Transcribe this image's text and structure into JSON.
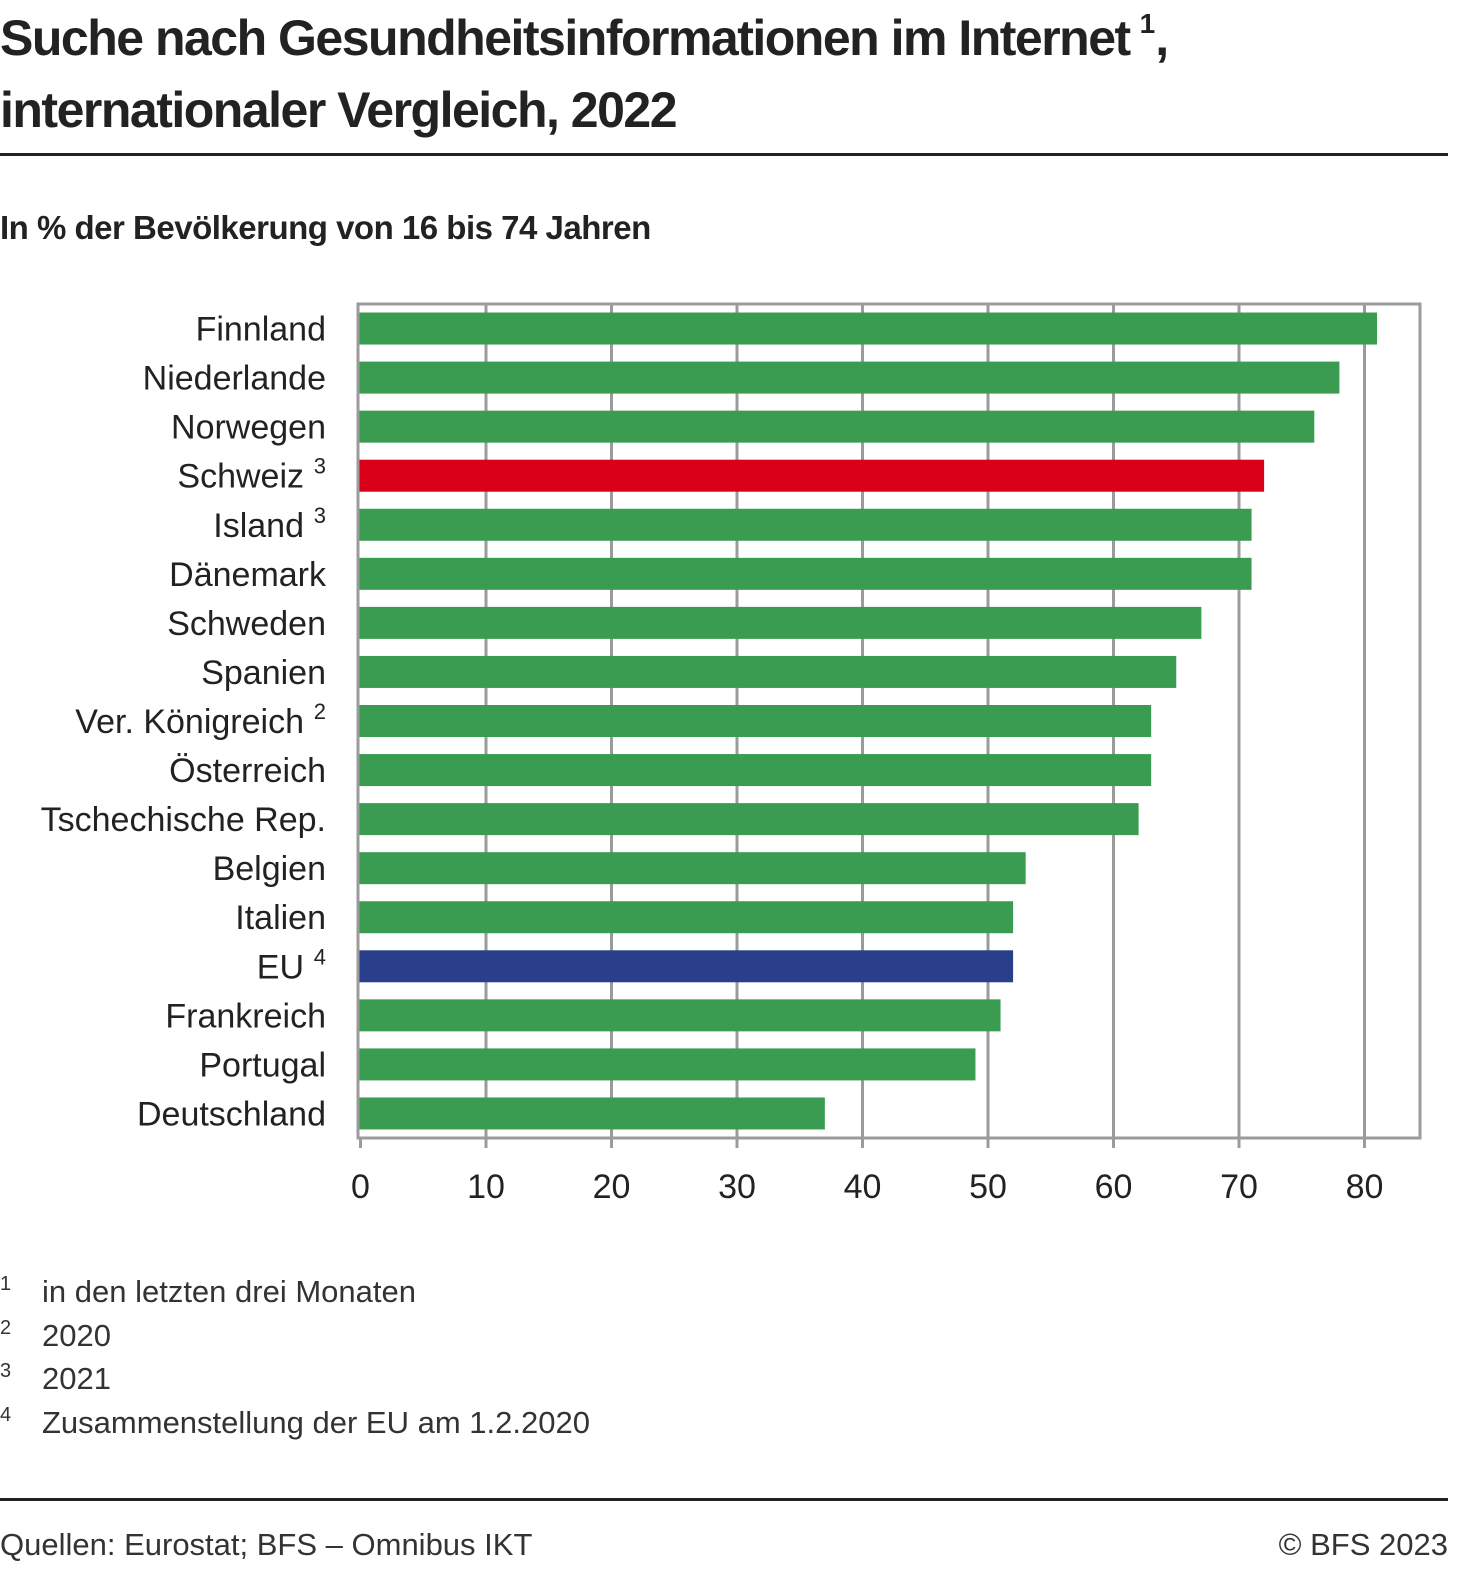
{
  "header": {
    "title_line1": "Suche nach Gesundheitsinformationen im Internet",
    "title_footnote": "1",
    "title_line1_suffix": ",",
    "title_line2": "internationaler Vergleich, 2022",
    "subtitle": "In % der Bevölkerung von 16 bis 74 Jahren"
  },
  "chart_data": {
    "type": "bar",
    "orientation": "horizontal",
    "title": "Suche nach Gesundheitsinformationen im Internet, internationaler Vergleich, 2022",
    "subtitle": "In % der Bevölkerung von 16 bis 74 Jahren",
    "xlabel": "",
    "ylabel": "",
    "xlim": [
      0,
      85
    ],
    "xticks": [
      0,
      10,
      20,
      30,
      40,
      50,
      60,
      70,
      80
    ],
    "grid": true,
    "categories": [
      {
        "label": "Finnland",
        "note": ""
      },
      {
        "label": "Niederlande",
        "note": ""
      },
      {
        "label": "Norwegen",
        "note": ""
      },
      {
        "label": "Schweiz",
        "note": "3"
      },
      {
        "label": "Island",
        "note": "3"
      },
      {
        "label": "Dänemark",
        "note": ""
      },
      {
        "label": "Schweden",
        "note": ""
      },
      {
        "label": "Spanien",
        "note": ""
      },
      {
        "label": "Ver. Königreich",
        "note": "2"
      },
      {
        "label": "Österreich",
        "note": ""
      },
      {
        "label": "Tschechische Rep.",
        "note": ""
      },
      {
        "label": "Belgien",
        "note": ""
      },
      {
        "label": "Italien",
        "note": ""
      },
      {
        "label": "EU",
        "note": "4"
      },
      {
        "label": "Frankreich",
        "note": ""
      },
      {
        "label": "Portugal",
        "note": ""
      },
      {
        "label": "Deutschland",
        "note": ""
      }
    ],
    "values": [
      81,
      78,
      76,
      72,
      71,
      71,
      67,
      65,
      63,
      63,
      62,
      53,
      52,
      52,
      51,
      49,
      37
    ],
    "highlight": {
      "Schweiz": "#da0019",
      "EU": "#2a3f8c"
    },
    "colors": {
      "default": "#3a9c50",
      "grid": "#9b9b9b",
      "axis_text": "#222222"
    }
  },
  "footnotes": [
    {
      "num": "1",
      "text": "in den letzten drei Monaten"
    },
    {
      "num": "2",
      "text": "2020"
    },
    {
      "num": "3",
      "text": "2021"
    },
    {
      "num": "4",
      "text": "Zusammenstellung der EU am 1.2.2020"
    }
  ],
  "footer": {
    "source": "Quellen: Eurostat; BFS – Omnibus IKT",
    "copyright": "© BFS 2023"
  }
}
